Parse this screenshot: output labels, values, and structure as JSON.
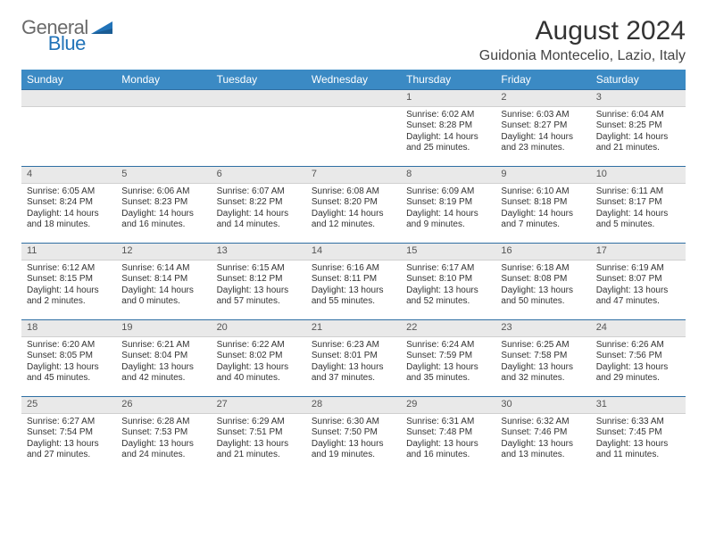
{
  "brand": {
    "part1": "General",
    "part2": "Blue"
  },
  "title": "August 2024",
  "location": "Guidonia Montecelio, Lazio, Italy",
  "day_headers": [
    "Sunday",
    "Monday",
    "Tuesday",
    "Wednesday",
    "Thursday",
    "Friday",
    "Saturday"
  ],
  "colors": {
    "header_bg": "#3b8ac4",
    "header_text": "#ffffff",
    "day_num_bg": "#e9e9e9",
    "row_border": "#2f6fa3",
    "brand_blue": "#2173b8",
    "brand_gray": "#6a6a6a"
  },
  "weeks": [
    [
      {
        "n": "",
        "sr": "",
        "ss": "",
        "dl1": "",
        "dl2": ""
      },
      {
        "n": "",
        "sr": "",
        "ss": "",
        "dl1": "",
        "dl2": ""
      },
      {
        "n": "",
        "sr": "",
        "ss": "",
        "dl1": "",
        "dl2": ""
      },
      {
        "n": "",
        "sr": "",
        "ss": "",
        "dl1": "",
        "dl2": ""
      },
      {
        "n": "1",
        "sr": "Sunrise: 6:02 AM",
        "ss": "Sunset: 8:28 PM",
        "dl1": "Daylight: 14 hours",
        "dl2": "and 25 minutes."
      },
      {
        "n": "2",
        "sr": "Sunrise: 6:03 AM",
        "ss": "Sunset: 8:27 PM",
        "dl1": "Daylight: 14 hours",
        "dl2": "and 23 minutes."
      },
      {
        "n": "3",
        "sr": "Sunrise: 6:04 AM",
        "ss": "Sunset: 8:25 PM",
        "dl1": "Daylight: 14 hours",
        "dl2": "and 21 minutes."
      }
    ],
    [
      {
        "n": "4",
        "sr": "Sunrise: 6:05 AM",
        "ss": "Sunset: 8:24 PM",
        "dl1": "Daylight: 14 hours",
        "dl2": "and 18 minutes."
      },
      {
        "n": "5",
        "sr": "Sunrise: 6:06 AM",
        "ss": "Sunset: 8:23 PM",
        "dl1": "Daylight: 14 hours",
        "dl2": "and 16 minutes."
      },
      {
        "n": "6",
        "sr": "Sunrise: 6:07 AM",
        "ss": "Sunset: 8:22 PM",
        "dl1": "Daylight: 14 hours",
        "dl2": "and 14 minutes."
      },
      {
        "n": "7",
        "sr": "Sunrise: 6:08 AM",
        "ss": "Sunset: 8:20 PM",
        "dl1": "Daylight: 14 hours",
        "dl2": "and 12 minutes."
      },
      {
        "n": "8",
        "sr": "Sunrise: 6:09 AM",
        "ss": "Sunset: 8:19 PM",
        "dl1": "Daylight: 14 hours",
        "dl2": "and 9 minutes."
      },
      {
        "n": "9",
        "sr": "Sunrise: 6:10 AM",
        "ss": "Sunset: 8:18 PM",
        "dl1": "Daylight: 14 hours",
        "dl2": "and 7 minutes."
      },
      {
        "n": "10",
        "sr": "Sunrise: 6:11 AM",
        "ss": "Sunset: 8:17 PM",
        "dl1": "Daylight: 14 hours",
        "dl2": "and 5 minutes."
      }
    ],
    [
      {
        "n": "11",
        "sr": "Sunrise: 6:12 AM",
        "ss": "Sunset: 8:15 PM",
        "dl1": "Daylight: 14 hours",
        "dl2": "and 2 minutes."
      },
      {
        "n": "12",
        "sr": "Sunrise: 6:14 AM",
        "ss": "Sunset: 8:14 PM",
        "dl1": "Daylight: 14 hours",
        "dl2": "and 0 minutes."
      },
      {
        "n": "13",
        "sr": "Sunrise: 6:15 AM",
        "ss": "Sunset: 8:12 PM",
        "dl1": "Daylight: 13 hours",
        "dl2": "and 57 minutes."
      },
      {
        "n": "14",
        "sr": "Sunrise: 6:16 AM",
        "ss": "Sunset: 8:11 PM",
        "dl1": "Daylight: 13 hours",
        "dl2": "and 55 minutes."
      },
      {
        "n": "15",
        "sr": "Sunrise: 6:17 AM",
        "ss": "Sunset: 8:10 PM",
        "dl1": "Daylight: 13 hours",
        "dl2": "and 52 minutes."
      },
      {
        "n": "16",
        "sr": "Sunrise: 6:18 AM",
        "ss": "Sunset: 8:08 PM",
        "dl1": "Daylight: 13 hours",
        "dl2": "and 50 minutes."
      },
      {
        "n": "17",
        "sr": "Sunrise: 6:19 AM",
        "ss": "Sunset: 8:07 PM",
        "dl1": "Daylight: 13 hours",
        "dl2": "and 47 minutes."
      }
    ],
    [
      {
        "n": "18",
        "sr": "Sunrise: 6:20 AM",
        "ss": "Sunset: 8:05 PM",
        "dl1": "Daylight: 13 hours",
        "dl2": "and 45 minutes."
      },
      {
        "n": "19",
        "sr": "Sunrise: 6:21 AM",
        "ss": "Sunset: 8:04 PM",
        "dl1": "Daylight: 13 hours",
        "dl2": "and 42 minutes."
      },
      {
        "n": "20",
        "sr": "Sunrise: 6:22 AM",
        "ss": "Sunset: 8:02 PM",
        "dl1": "Daylight: 13 hours",
        "dl2": "and 40 minutes."
      },
      {
        "n": "21",
        "sr": "Sunrise: 6:23 AM",
        "ss": "Sunset: 8:01 PM",
        "dl1": "Daylight: 13 hours",
        "dl2": "and 37 minutes."
      },
      {
        "n": "22",
        "sr": "Sunrise: 6:24 AM",
        "ss": "Sunset: 7:59 PM",
        "dl1": "Daylight: 13 hours",
        "dl2": "and 35 minutes."
      },
      {
        "n": "23",
        "sr": "Sunrise: 6:25 AM",
        "ss": "Sunset: 7:58 PM",
        "dl1": "Daylight: 13 hours",
        "dl2": "and 32 minutes."
      },
      {
        "n": "24",
        "sr": "Sunrise: 6:26 AM",
        "ss": "Sunset: 7:56 PM",
        "dl1": "Daylight: 13 hours",
        "dl2": "and 29 minutes."
      }
    ],
    [
      {
        "n": "25",
        "sr": "Sunrise: 6:27 AM",
        "ss": "Sunset: 7:54 PM",
        "dl1": "Daylight: 13 hours",
        "dl2": "and 27 minutes."
      },
      {
        "n": "26",
        "sr": "Sunrise: 6:28 AM",
        "ss": "Sunset: 7:53 PM",
        "dl1": "Daylight: 13 hours",
        "dl2": "and 24 minutes."
      },
      {
        "n": "27",
        "sr": "Sunrise: 6:29 AM",
        "ss": "Sunset: 7:51 PM",
        "dl1": "Daylight: 13 hours",
        "dl2": "and 21 minutes."
      },
      {
        "n": "28",
        "sr": "Sunrise: 6:30 AM",
        "ss": "Sunset: 7:50 PM",
        "dl1": "Daylight: 13 hours",
        "dl2": "and 19 minutes."
      },
      {
        "n": "29",
        "sr": "Sunrise: 6:31 AM",
        "ss": "Sunset: 7:48 PM",
        "dl1": "Daylight: 13 hours",
        "dl2": "and 16 minutes."
      },
      {
        "n": "30",
        "sr": "Sunrise: 6:32 AM",
        "ss": "Sunset: 7:46 PM",
        "dl1": "Daylight: 13 hours",
        "dl2": "and 13 minutes."
      },
      {
        "n": "31",
        "sr": "Sunrise: 6:33 AM",
        "ss": "Sunset: 7:45 PM",
        "dl1": "Daylight: 13 hours",
        "dl2": "and 11 minutes."
      }
    ]
  ]
}
